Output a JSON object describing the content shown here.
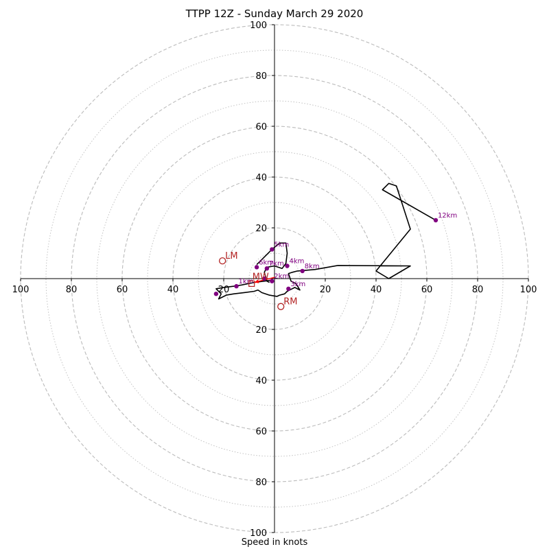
{
  "chart_data": {
    "type": "hodograph",
    "title": "TTPP 12Z - Sunday March 29 2020",
    "xlabel": "Speed in knots",
    "ylabel": "",
    "range_knots": 100,
    "ring_major_step": 20,
    "ring_minor_step": 10,
    "axis_ticks": [
      100,
      80,
      60,
      40,
      20,
      0,
      20,
      40,
      60,
      80,
      100
    ],
    "colors": {
      "trace": "#000000",
      "height_marker": "#800080",
      "motion": "#b22222",
      "mean_wind_arrow": "#ff0000",
      "grid": "#bbbbbb"
    },
    "trace": [
      [
        -0.8,
        -0.5
      ],
      [
        -4,
        -1
      ],
      [
        -8,
        -1.5
      ],
      [
        -13,
        -2.5
      ],
      [
        -16,
        -3
      ],
      [
        -20,
        -3.5
      ],
      [
        -23,
        -4
      ],
      [
        -21,
        -6
      ],
      [
        -22,
        -8
      ],
      [
        -19,
        -6.5
      ],
      [
        -16,
        -6
      ],
      [
        -12,
        -5.5
      ],
      [
        -8,
        -5
      ],
      [
        -6.5,
        -4.5
      ],
      [
        -5,
        -5.5
      ],
      [
        -2,
        -6.5
      ],
      [
        1,
        -7
      ],
      [
        2,
        -6.5
      ],
      [
        4,
        -6
      ],
      [
        5,
        -5
      ],
      [
        6,
        -4.5
      ],
      [
        8,
        -3.5
      ],
      [
        10,
        -4.5
      ],
      [
        8.5,
        -2
      ],
      [
        6.5,
        -1
      ],
      [
        5.5,
        2
      ],
      [
        7,
        2.5
      ],
      [
        9,
        3
      ],
      [
        16,
        3.6
      ],
      [
        25,
        5.2
      ],
      [
        53.5,
        5
      ],
      [
        45,
        0
      ],
      [
        40,
        3
      ],
      [
        53.5,
        19.5
      ],
      [
        48,
        36.5
      ],
      [
        45,
        37.5
      ],
      [
        42.5,
        35
      ],
      [
        63.5,
        23
      ]
    ],
    "trace_tail": [
      [
        -7,
        5.5
      ],
      [
        -4,
        8.5
      ],
      [
        -1,
        11.5
      ],
      [
        2,
        14
      ],
      [
        4.5,
        14
      ],
      [
        5,
        10
      ],
      [
        4.5,
        6
      ],
      [
        3,
        4
      ],
      [
        0,
        5
      ],
      [
        -3,
        4.5
      ],
      [
        -4,
        2.5
      ],
      [
        -3,
        -1
      ],
      [
        -2,
        -1.5
      ]
    ],
    "height_markers": [
      {
        "label": "1km",
        "x": -15,
        "y": -3
      },
      {
        "label": "2km",
        "x": -1,
        "y": -1
      },
      {
        "label": "3km",
        "x": 5.5,
        "y": -4
      },
      {
        "label": "4km",
        "x": 5,
        "y": 5
      },
      {
        "label": "5km",
        "x": -1,
        "y": 11.5
      },
      {
        "label": "6km",
        "x": -7,
        "y": 4.5
      },
      {
        "label": "7km",
        "x": -3,
        "y": 4
      },
      {
        "label": "8km",
        "x": 11,
        "y": 3
      },
      {
        "label": "12km",
        "x": 63.5,
        "y": 23
      }
    ],
    "extra_markers": [
      {
        "label": "",
        "x": -23,
        "y": -6
      },
      {
        "label": "",
        "x": -4,
        "y": 0
      }
    ],
    "storm_motion": [
      {
        "label": "LM",
        "x": -20.5,
        "y": 7
      },
      {
        "label": "RM",
        "x": 2.5,
        "y": -11
      }
    ],
    "mean_wind": {
      "label": "MW",
      "x": -9,
      "y": -2,
      "arrow_from": [
        0,
        0.5
      ],
      "arrow_to": [
        -8,
        -1.5
      ]
    }
  }
}
